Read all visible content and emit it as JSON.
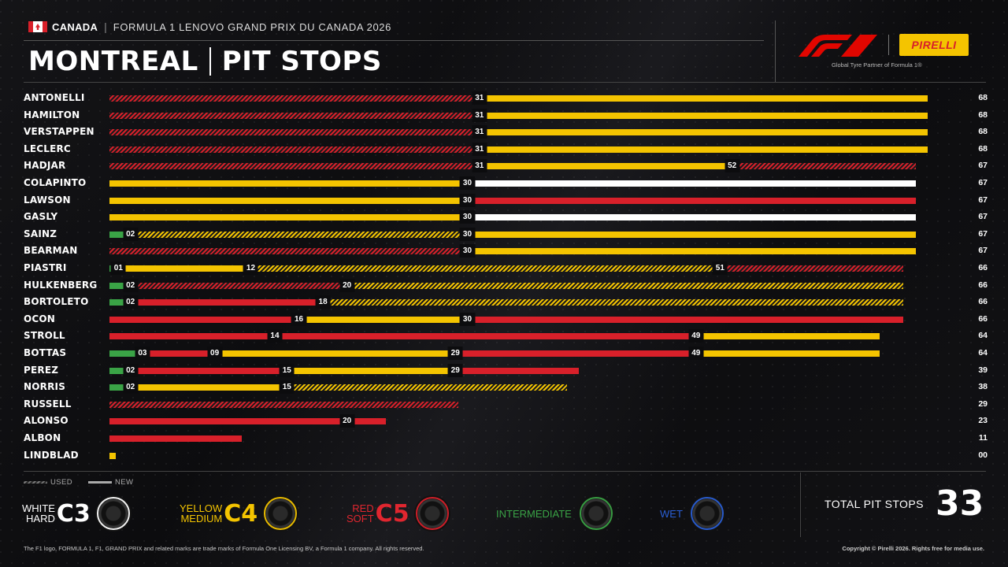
{
  "header": {
    "country": "CANADA",
    "separator": "|",
    "event": "FORMULA 1 LENOVO GRAND PRIX DU CANADA 2026",
    "title_city": "MONTREAL",
    "title_topic": "PIT STOPS",
    "partner_text": "Global Tyre Partner of Formula 1®",
    "pirelli_label": "PIRELLI"
  },
  "colors": {
    "hard": "#ffffff",
    "medium": "#f4c400",
    "soft": "#d8202a",
    "intermediate": "#3aa346",
    "wet": "#2a5fd6",
    "background": "#0c0c0e"
  },
  "legend": {
    "used_label": "USED",
    "new_label": "NEW",
    "compounds": [
      {
        "key": "hard",
        "name_lines": [
          "WHITE",
          "HARD"
        ],
        "code": "C3",
        "color": "#ffffff"
      },
      {
        "key": "medium",
        "name_lines": [
          "YELLOW",
          "MEDIUM"
        ],
        "code": "C4",
        "color": "#f4c400"
      },
      {
        "key": "soft",
        "name_lines": [
          "RED",
          "SOFT"
        ],
        "code": "C5",
        "color": "#d8202a"
      },
      {
        "key": "intermediate",
        "name": "INTERMEDIATE",
        "color": "#3aa346"
      },
      {
        "key": "wet",
        "name": "WET",
        "color": "#2a5fd6"
      }
    ]
  },
  "summary": {
    "total_label": "TOTAL PIT STOPS",
    "total_value": "33"
  },
  "footer": {
    "left": "The F1 logo, FORMULA 1, F1, GRAND PRIX and related marks are trade marks of Formula One Licensing BV, a Formula 1 company. All rights reserved.",
    "right": "Copyright © Pirelli 2026. Rights free for media use."
  },
  "chart_data": {
    "type": "bar",
    "orientation": "horizontal stacked (tyre stints by lap)",
    "x_unit": "lap",
    "xlim": [
      0,
      70
    ],
    "drivers": [
      {
        "name": "ANTONELLI",
        "total": "68",
        "stints": [
          {
            "compound": "soft",
            "used": true,
            "end": 31,
            "label": "31"
          },
          {
            "compound": "medium",
            "used": false,
            "end": 68,
            "label": ""
          }
        ]
      },
      {
        "name": "HAMILTON",
        "total": "68",
        "stints": [
          {
            "compound": "soft",
            "used": true,
            "end": 31,
            "label": "31"
          },
          {
            "compound": "medium",
            "used": false,
            "end": 68,
            "label": ""
          }
        ]
      },
      {
        "name": "VERSTAPPEN",
        "total": "68",
        "stints": [
          {
            "compound": "soft",
            "used": true,
            "end": 31,
            "label": "31"
          },
          {
            "compound": "medium",
            "used": false,
            "end": 68,
            "label": ""
          }
        ]
      },
      {
        "name": "LECLERC",
        "total": "68",
        "stints": [
          {
            "compound": "soft",
            "used": true,
            "end": 31,
            "label": "31"
          },
          {
            "compound": "medium",
            "used": false,
            "end": 68,
            "label": ""
          }
        ]
      },
      {
        "name": "HADJAR",
        "total": "67",
        "stints": [
          {
            "compound": "soft",
            "used": true,
            "end": 31,
            "label": "31"
          },
          {
            "compound": "medium",
            "used": false,
            "end": 52,
            "label": "52"
          },
          {
            "compound": "soft",
            "used": true,
            "end": 67,
            "label": ""
          }
        ]
      },
      {
        "name": "COLAPINTO",
        "total": "67",
        "stints": [
          {
            "compound": "medium",
            "used": false,
            "end": 30,
            "label": "30"
          },
          {
            "compound": "hard",
            "used": false,
            "end": 67,
            "label": ""
          }
        ]
      },
      {
        "name": "LAWSON",
        "total": "67",
        "stints": [
          {
            "compound": "medium",
            "used": false,
            "end": 30,
            "label": "30"
          },
          {
            "compound": "soft",
            "used": false,
            "end": 67,
            "label": ""
          }
        ]
      },
      {
        "name": "GASLY",
        "total": "67",
        "stints": [
          {
            "compound": "medium",
            "used": false,
            "end": 30,
            "label": "30"
          },
          {
            "compound": "hard",
            "used": false,
            "end": 67,
            "label": ""
          }
        ]
      },
      {
        "name": "SAINZ",
        "total": "67",
        "stints": [
          {
            "compound": "intermediate",
            "used": false,
            "end": 2,
            "label": "02"
          },
          {
            "compound": "medium",
            "used": true,
            "end": 30,
            "label": "30"
          },
          {
            "compound": "medium",
            "used": false,
            "end": 67,
            "label": ""
          }
        ]
      },
      {
        "name": "BEARMAN",
        "total": "67",
        "stints": [
          {
            "compound": "soft",
            "used": true,
            "end": 30,
            "label": "30"
          },
          {
            "compound": "medium",
            "used": false,
            "end": 67,
            "label": ""
          }
        ]
      },
      {
        "name": "PIASTRI",
        "total": "66",
        "stints": [
          {
            "compound": "intermediate",
            "used": false,
            "end": 1,
            "label": "01"
          },
          {
            "compound": "medium",
            "used": false,
            "end": 12,
            "label": "12"
          },
          {
            "compound": "medium",
            "used": true,
            "end": 51,
            "label": "51"
          },
          {
            "compound": "soft",
            "used": true,
            "end": 66,
            "label": ""
          }
        ]
      },
      {
        "name": "HULKENBERG",
        "total": "66",
        "stints": [
          {
            "compound": "intermediate",
            "used": false,
            "end": 2,
            "label": "02"
          },
          {
            "compound": "soft",
            "used": true,
            "end": 20,
            "label": "20"
          },
          {
            "compound": "medium",
            "used": true,
            "end": 66,
            "label": ""
          }
        ]
      },
      {
        "name": "BORTOLETO",
        "total": "66",
        "stints": [
          {
            "compound": "intermediate",
            "used": false,
            "end": 2,
            "label": "02"
          },
          {
            "compound": "soft",
            "used": false,
            "end": 18,
            "label": "18"
          },
          {
            "compound": "medium",
            "used": true,
            "end": 66,
            "label": ""
          }
        ]
      },
      {
        "name": "OCON",
        "total": "66",
        "stints": [
          {
            "compound": "soft",
            "used": false,
            "end": 16,
            "label": "16"
          },
          {
            "compound": "medium",
            "used": false,
            "end": 30,
            "label": "30"
          },
          {
            "compound": "soft",
            "used": false,
            "end": 66,
            "label": ""
          }
        ]
      },
      {
        "name": "STROLL",
        "total": "64",
        "stints": [
          {
            "compound": "soft",
            "used": false,
            "end": 14,
            "label": "14"
          },
          {
            "compound": "soft",
            "used": false,
            "end": 49,
            "label": "49"
          },
          {
            "compound": "medium",
            "used": false,
            "end": 64,
            "label": ""
          }
        ]
      },
      {
        "name": "BOTTAS",
        "total": "64",
        "stints": [
          {
            "compound": "intermediate",
            "used": false,
            "end": 3,
            "label": "03"
          },
          {
            "compound": "soft",
            "used": false,
            "end": 9,
            "label": "09"
          },
          {
            "compound": "medium",
            "used": false,
            "end": 29,
            "label": "29"
          },
          {
            "compound": "soft",
            "used": false,
            "end": 49,
            "label": "49"
          },
          {
            "compound": "medium",
            "used": false,
            "end": 64,
            "label": ""
          }
        ]
      },
      {
        "name": "PEREZ",
        "total": "39",
        "stints": [
          {
            "compound": "intermediate",
            "used": false,
            "end": 2,
            "label": "02"
          },
          {
            "compound": "soft",
            "used": false,
            "end": 15,
            "label": "15"
          },
          {
            "compound": "medium",
            "used": false,
            "end": 29,
            "label": "29"
          },
          {
            "compound": "soft",
            "used": false,
            "end": 39,
            "label": ""
          }
        ]
      },
      {
        "name": "NORRIS",
        "total": "38",
        "stints": [
          {
            "compound": "intermediate",
            "used": false,
            "end": 2,
            "label": "02"
          },
          {
            "compound": "medium",
            "used": false,
            "end": 15,
            "label": "15"
          },
          {
            "compound": "medium",
            "used": true,
            "end": 38,
            "label": ""
          }
        ]
      },
      {
        "name": "RUSSELL",
        "total": "29",
        "stints": [
          {
            "compound": "soft",
            "used": true,
            "end": 29,
            "label": ""
          }
        ]
      },
      {
        "name": "ALONSO",
        "total": "23",
        "stints": [
          {
            "compound": "soft",
            "used": false,
            "end": 20,
            "label": "20"
          },
          {
            "compound": "soft",
            "used": false,
            "end": 23,
            "label": ""
          }
        ]
      },
      {
        "name": "ALBON",
        "total": "11",
        "stints": [
          {
            "compound": "soft",
            "used": false,
            "end": 11,
            "label": ""
          }
        ]
      },
      {
        "name": "LINDBLAD",
        "total": "00",
        "stints": [
          {
            "compound": "medium",
            "used": false,
            "end": 0.5,
            "label": ""
          }
        ]
      }
    ]
  }
}
